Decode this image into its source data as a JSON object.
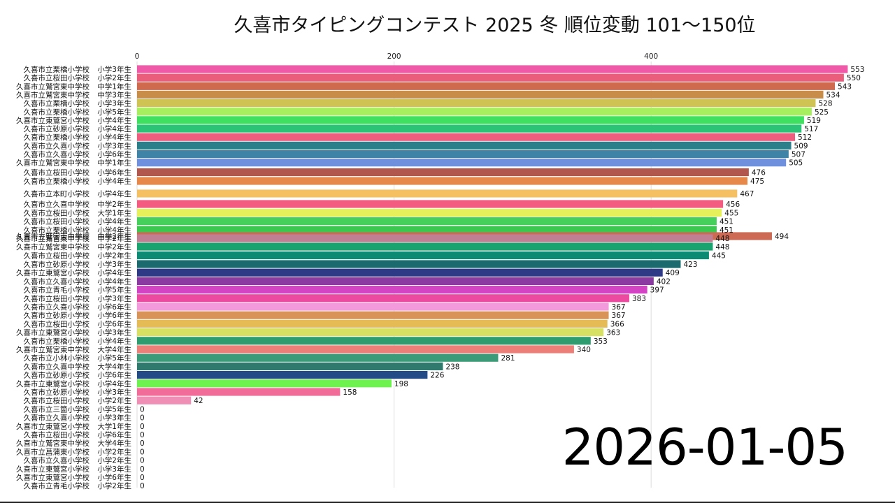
{
  "chart_data": {
    "type": "bar",
    "title": "久喜市タイピングコンテスト 2025 冬 順位変動 101～150位",
    "date": "2026-01-05",
    "xlim": [
      0,
      560
    ],
    "xticks": [
      0,
      200,
      400
    ],
    "grid": true,
    "bars": [
      {
        "school": "久喜市立栗橋小学校",
        "grade": "小学3年生",
        "value": 553,
        "color": "#ee5aa8"
      },
      {
        "school": "久喜市立桜田小学校",
        "grade": "小学2年生",
        "value": 550,
        "color": "#ea5e7c"
      },
      {
        "school": "久喜市立鷲宮東中学校",
        "grade": "中学1年生",
        "value": 543,
        "color": "#cf6a4e"
      },
      {
        "school": "久喜市立鷲宮東中学校",
        "grade": "中学3年生",
        "value": 534,
        "color": "#c98d4a"
      },
      {
        "school": "久喜市立栗橋小学校",
        "grade": "小学3年生",
        "value": 528,
        "color": "#cfc453"
      },
      {
        "school": "久喜市立栗橋小学校",
        "grade": "小学5年生",
        "value": 525,
        "color": "#a7ef5f"
      },
      {
        "school": "久喜市立東鷲宮小学校",
        "grade": "小学4年生",
        "value": 519,
        "color": "#3fe060"
      },
      {
        "school": "久喜市立砂原小学校",
        "grade": "小学4年生",
        "value": 517,
        "color": "#2bc376"
      },
      {
        "school": "久喜市立栗橋小学校",
        "grade": "小学4年生",
        "value": 512,
        "color": "#ef5d7e"
      },
      {
        "school": "久喜市立久喜小学校",
        "grade": "小学3年生",
        "value": 509,
        "color": "#2a7f8a"
      },
      {
        "school": "久喜市立久喜小学校",
        "grade": "小学6年生",
        "value": 507,
        "color": "#3f84a6"
      },
      {
        "school": "久喜市立鷲宮東中学校",
        "grade": "中学1年生",
        "value": 505,
        "color": "#6f90dc"
      },
      {
        "school": "久喜市立桜田小学校",
        "grade": "小学6年生",
        "value": 476,
        "color": "#b2574d"
      },
      {
        "school": "久喜市立栗橋小学校",
        "grade": "小学4年生",
        "value": 475,
        "color": "#e7884b"
      },
      {
        "school": "久喜市立本町小学校",
        "grade": "小学4年生",
        "value": 467,
        "color": "#f5c061"
      },
      {
        "school": "久喜市立久喜中学校",
        "grade": "中学2年生",
        "value": 456,
        "color": "#f35b80"
      },
      {
        "school": "久喜市立桜田小学校",
        "grade": "大学1年生",
        "value": 455,
        "color": "#e5f05a"
      },
      {
        "school": "久喜市立桜田小学校",
        "grade": "小学4年生",
        "value": 451,
        "color": "#45d05b"
      },
      {
        "school": "久喜市立栗橋小学校",
        "grade": "小学4年生",
        "value": 451,
        "color": "#3cc750"
      },
      {
        "school": "久喜市立鷲宮東中学校",
        "grade": "中学2年生",
        "value": 494,
        "color": "#cc6a54"
      },
      {
        "school": "久喜市立鷲宮東中学校",
        "grade": "中学2年生",
        "value": 448,
        "color": "#c07f92"
      },
      {
        "school": "久喜市立鷲宮東中学校",
        "grade": "中学2年生",
        "value": 448,
        "color": "#19a36e"
      },
      {
        "school": "久喜市立桜田小学校",
        "grade": "小学2年生",
        "value": 445,
        "color": "#0c8a74"
      },
      {
        "school": "久喜市立砂原小学校",
        "grade": "小学3年生",
        "value": 423,
        "color": "#1b6b6e"
      },
      {
        "school": "久喜市立東鷲宮小学校",
        "grade": "小学4年生",
        "value": 409,
        "color": "#2f3a86"
      },
      {
        "school": "久喜市立久喜小学校",
        "grade": "小学4年生",
        "value": 402,
        "color": "#8b3aa2"
      },
      {
        "school": "久喜市立青毛小学校",
        "grade": "小学5年生",
        "value": 397,
        "color": "#d244c4"
      },
      {
        "school": "久喜市立桜田小学校",
        "grade": "小学3年生",
        "value": 383,
        "color": "#ec4aa0"
      },
      {
        "school": "久喜市立久喜小学校",
        "grade": "小学6年生",
        "value": 367,
        "color": "#f29adb"
      },
      {
        "school": "久喜市立砂原小学校",
        "grade": "小学6年生",
        "value": 367,
        "color": "#d89458"
      },
      {
        "school": "久喜市立桜田小学校",
        "grade": "小学6年生",
        "value": 366,
        "color": "#e4bb55"
      },
      {
        "school": "久喜市立東鷲宮小学校",
        "grade": "小学3年生",
        "value": 363,
        "color": "#d8e063"
      },
      {
        "school": "久喜市立栗橋小学校",
        "grade": "小学4年生",
        "value": 353,
        "color": "#2f9c6f"
      },
      {
        "school": "久喜市立鷲宮東中学校",
        "grade": "大学4年生",
        "value": 340,
        "color": "#ec7f78"
      },
      {
        "school": "久喜市立小林小学校",
        "grade": "小学5年生",
        "value": 281,
        "color": "#3c9c7a"
      },
      {
        "school": "久喜市立久喜中学校",
        "grade": "大学4年生",
        "value": 238,
        "color": "#2f7a6c"
      },
      {
        "school": "久喜市立砂原小学校",
        "grade": "小学6年生",
        "value": 226,
        "color": "#234b86"
      },
      {
        "school": "久喜市立東鷲宮小学校",
        "grade": "小学4年生",
        "value": 198,
        "color": "#6df24f"
      },
      {
        "school": "久喜市立砂原小学校",
        "grade": "小学3年生",
        "value": 158,
        "color": "#f26c9a"
      },
      {
        "school": "久喜市立桜田小学校",
        "grade": "小学2年生",
        "value": 42,
        "color": "#f08fb5"
      },
      {
        "school": "久喜市立三箇小学校",
        "grade": "小学5年生",
        "value": 0,
        "color": "#888888"
      },
      {
        "school": "久喜市立久喜小学校",
        "grade": "小学3年生",
        "value": 0,
        "color": "#888888"
      },
      {
        "school": "久喜市立東鷲宮小学校",
        "grade": "大学1年生",
        "value": 0,
        "color": "#888888"
      },
      {
        "school": "久喜市立桜田小学校",
        "grade": "小学6年生",
        "value": 0,
        "color": "#888888"
      },
      {
        "school": "久喜市立鷲宮東中学校",
        "grade": "大学4年生",
        "value": 0,
        "color": "#888888"
      },
      {
        "school": "久喜市立菖蒲東小学校",
        "grade": "小学2年生",
        "value": 0,
        "color": "#888888"
      },
      {
        "school": "久喜市立久喜小学校",
        "grade": "小学2年生",
        "value": 0,
        "color": "#888888"
      },
      {
        "school": "久喜市立東鷲宮小学校",
        "grade": "小学3年生",
        "value": 0,
        "color": "#888888"
      },
      {
        "school": "久喜市立東鷲宮小学校",
        "grade": "小学6年生",
        "value": 0,
        "color": "#888888"
      },
      {
        "school": "久喜市立青毛小学校",
        "grade": "小学2年生",
        "value": 0,
        "color": "#888888"
      }
    ]
  }
}
